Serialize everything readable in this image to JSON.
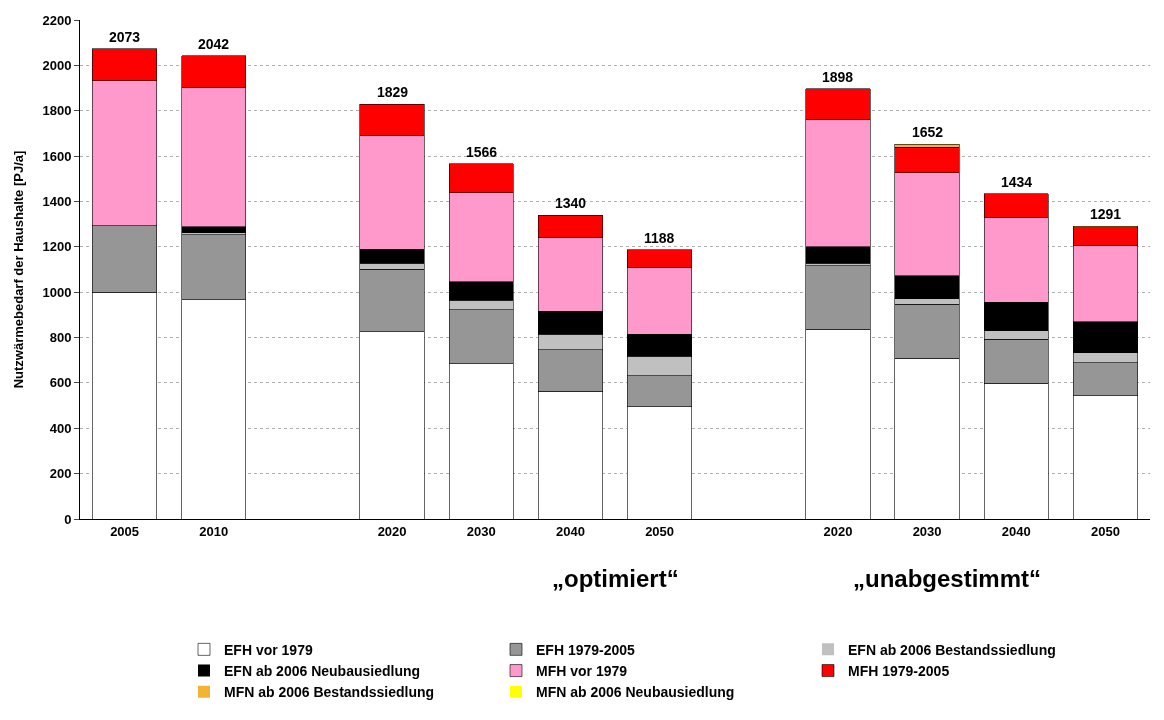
{
  "chart_data": {
    "type": "bar",
    "stacked": true,
    "ylabel": "Nutzwärmebedarf der Haushalte [PJ/a]",
    "categories": [
      "2005",
      "2010",
      null,
      "2020",
      "2030",
      "2040",
      "2050",
      null,
      "2020",
      "2030",
      "2040",
      "2050"
    ],
    "series": [
      {
        "name": "EFH vor 1979",
        "color": "#ffffff",
        "values": [
          1000,
          967,
          null,
          826,
          685,
          564,
          494,
          null,
          836,
          709,
          599,
          544
        ]
      },
      {
        "name": "EFH 1979-2005",
        "color": "#969696",
        "values": [
          294,
          287,
          null,
          276,
          238,
          183,
          138,
          null,
          280,
          237,
          193,
          144
        ]
      },
      {
        "name": "EFN ab 2006 Bestandssiedlung",
        "color": "#c0c0c0",
        "values": [
          0,
          8,
          null,
          26,
          41,
          68,
          85,
          null,
          12,
          25,
          37,
          46
        ]
      },
      {
        "name": "EFN ab 2006 Neubausiedlung",
        "color": "#000000",
        "values": [
          0,
          26,
          null,
          61,
          83,
          101,
          98,
          null,
          73,
          102,
          127,
          135
        ]
      },
      {
        "name": "MFH vor 1979",
        "color": "#ff99cc",
        "values": [
          639,
          613,
          null,
          501,
          392,
          324,
          294,
          null,
          562,
          453,
          373,
          339
        ]
      },
      {
        "name": "MFH 1979-2005",
        "color": "#ff0000",
        "values": [
          140,
          141,
          null,
          139,
          127,
          100,
          79,
          null,
          135,
          114,
          105,
          75
        ]
      },
      {
        "name": "MFN ab 2006 Bestandssiedlung",
        "color": "#f5b335",
        "values": [
          0,
          0,
          null,
          0,
          0,
          0,
          0,
          null,
          0,
          12,
          0,
          8
        ]
      },
      {
        "name": "MFN ab 2006 Neubausiedlung",
        "color": "#ffff00",
        "values": [
          0,
          0,
          null,
          0,
          0,
          0,
          0,
          null,
          0,
          0,
          0,
          0
        ]
      }
    ],
    "totals": [
      "2073",
      "2042",
      null,
      "1829",
      "1566",
      "1340",
      "1188",
      null,
      "1898",
      "1652",
      "1434",
      "1291"
    ],
    "annotations": [
      "„optimiert“",
      "„unabgestimmt“"
    ],
    "ylim": [
      0,
      2200
    ],
    "yticks": [
      0,
      200,
      400,
      600,
      800,
      1000,
      1200,
      1400,
      1600,
      1800,
      2000,
      2200
    ],
    "grid": "y",
    "legend": "bottom"
  }
}
